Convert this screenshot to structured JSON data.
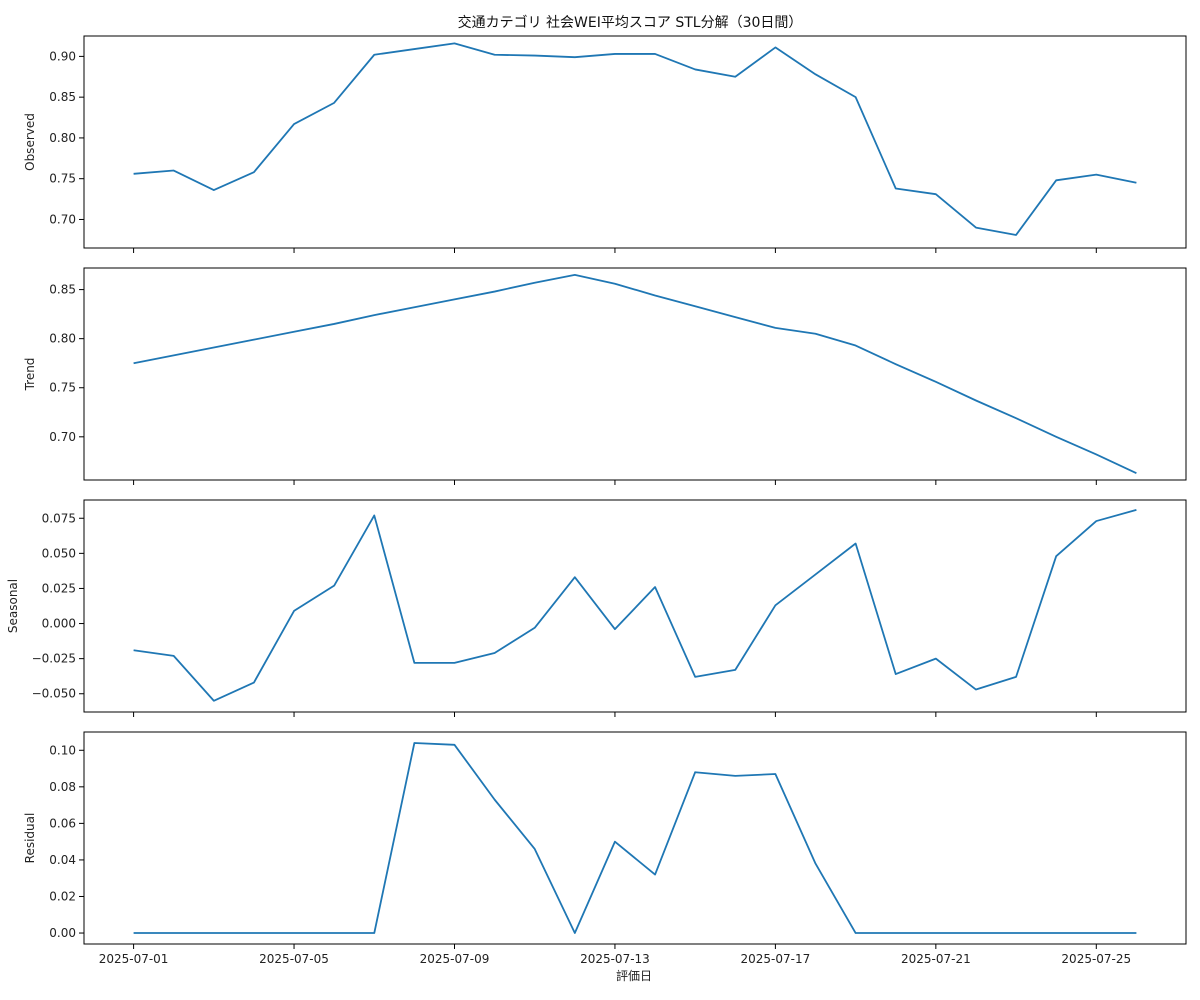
{
  "chart_data": {
    "type": "line",
    "title": "交通カテゴリ 社会WEI平均スコア STL分解（30日間）",
    "xlabel": "評価日",
    "x": [
      "2025-07-01",
      "2025-07-02",
      "2025-07-03",
      "2025-07-04",
      "2025-07-05",
      "2025-07-06",
      "2025-07-07",
      "2025-07-08",
      "2025-07-09",
      "2025-07-10",
      "2025-07-11",
      "2025-07-12",
      "2025-07-13",
      "2025-07-14",
      "2025-07-15",
      "2025-07-16",
      "2025-07-17",
      "2025-07-18",
      "2025-07-19",
      "2025-07-20",
      "2025-07-21",
      "2025-07-22",
      "2025-07-23",
      "2025-07-24",
      "2025-07-25",
      "2025-07-26"
    ],
    "x_ticks": [
      "2025-07-01",
      "2025-07-05",
      "2025-07-09",
      "2025-07-13",
      "2025-07-17",
      "2025-07-21",
      "2025-07-25"
    ],
    "line_color": "#1f77b4",
    "grid": false,
    "panels": [
      {
        "name": "Observed",
        "ylabel": "Observed",
        "ylim": [
          0.665,
          0.925
        ],
        "yticks": [
          0.7,
          0.75,
          0.8,
          0.85,
          0.9
        ],
        "ytick_labels": [
          "0.70",
          "0.75",
          "0.80",
          "0.85",
          "0.90"
        ],
        "values": [
          0.756,
          0.76,
          0.736,
          0.758,
          0.817,
          0.843,
          0.902,
          0.909,
          0.916,
          0.902,
          0.901,
          0.899,
          0.903,
          0.903,
          0.884,
          0.875,
          0.911,
          0.878,
          0.85,
          0.738,
          0.731,
          0.69,
          0.681,
          0.748,
          0.755,
          0.745
        ]
      },
      {
        "name": "Trend",
        "ylabel": "Trend",
        "ylim": [
          0.656,
          0.872
        ],
        "yticks": [
          0.7,
          0.75,
          0.8,
          0.85
        ],
        "ytick_labels": [
          "0.70",
          "0.75",
          "0.80",
          "0.85"
        ],
        "values": [
          0.775,
          0.783,
          0.791,
          0.799,
          0.807,
          0.815,
          0.824,
          0.832,
          0.84,
          0.848,
          0.857,
          0.865,
          0.856,
          0.844,
          0.833,
          0.822,
          0.811,
          0.805,
          0.793,
          0.774,
          0.756,
          0.737,
          0.719,
          0.7,
          0.682,
          0.663
        ]
      },
      {
        "name": "Seasonal",
        "ylabel": "Seasonal",
        "ylim": [
          -0.063,
          0.088
        ],
        "yticks": [
          -0.05,
          -0.025,
          0.0,
          0.025,
          0.05,
          0.075
        ],
        "ytick_labels": [
          "−0.050",
          "−0.025",
          "0.000",
          "0.025",
          "0.050",
          "0.075"
        ],
        "values": [
          -0.019,
          -0.023,
          -0.055,
          -0.042,
          0.009,
          0.027,
          0.077,
          -0.028,
          -0.028,
          -0.021,
          -0.003,
          0.033,
          -0.004,
          0.026,
          -0.038,
          -0.033,
          0.013,
          0.035,
          0.057,
          -0.036,
          -0.025,
          -0.047,
          -0.038,
          0.048,
          0.073,
          0.081
        ]
      },
      {
        "name": "Residual",
        "ylabel": "Residual",
        "ylim": [
          -0.006,
          0.11
        ],
        "yticks": [
          0.0,
          0.02,
          0.04,
          0.06,
          0.08,
          0.1
        ],
        "ytick_labels": [
          "0.00",
          "0.02",
          "0.04",
          "0.06",
          "0.08",
          "0.10"
        ],
        "values": [
          0.0,
          0.0,
          0.0,
          0.0,
          0.0,
          0.0,
          0.0,
          0.104,
          0.103,
          0.073,
          0.046,
          0.0,
          0.05,
          0.032,
          0.088,
          0.086,
          0.087,
          0.038,
          0.0,
          0.0,
          0.0,
          0.0,
          0.0,
          0.0,
          0.0,
          0.0
        ]
      }
    ]
  }
}
